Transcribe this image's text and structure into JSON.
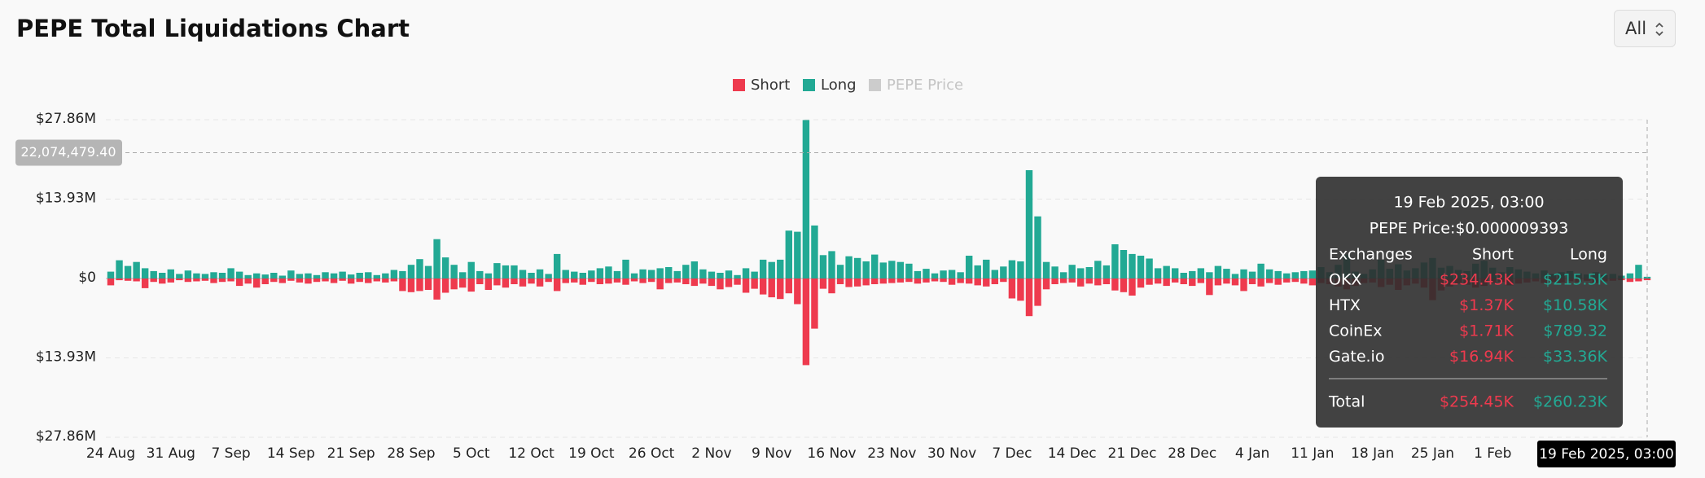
{
  "chart_data": {
    "type": "bar",
    "title": "PEPE Total Liquidations Chart",
    "range_selector": "All",
    "categories": [
      "24 Aug",
      null,
      null,
      null,
      null,
      null,
      null,
      "31 Aug",
      null,
      null,
      null,
      null,
      null,
      null,
      "7 Sep",
      null,
      null,
      null,
      null,
      null,
      null,
      "14 Sep",
      null,
      null,
      null,
      null,
      null,
      null,
      "21 Sep",
      null,
      null,
      null,
      null,
      null,
      null,
      "28 Sep",
      null,
      null,
      null,
      null,
      null,
      null,
      "5 Oct",
      null,
      null,
      null,
      null,
      null,
      null,
      "12 Oct",
      null,
      null,
      null,
      null,
      null,
      null,
      "19 Oct",
      null,
      null,
      null,
      null,
      null,
      null,
      "26 Oct",
      null,
      null,
      null,
      null,
      null,
      null,
      "2 Nov",
      null,
      null,
      null,
      null,
      null,
      null,
      "9 Nov",
      null,
      null,
      null,
      null,
      null,
      null,
      "16 Nov",
      null,
      null,
      null,
      null,
      null,
      null,
      "23 Nov",
      null,
      null,
      null,
      null,
      null,
      null,
      "30 Nov",
      null,
      null,
      null,
      null,
      null,
      null,
      "7 Dec",
      null,
      null,
      null,
      null,
      null,
      null,
      "14 Dec",
      null,
      null,
      null,
      null,
      null,
      null,
      "21 Dec",
      null,
      null,
      null,
      null,
      null,
      null,
      "28 Dec",
      null,
      null,
      null,
      null,
      null,
      null,
      "4 Jan",
      null,
      null,
      null,
      null,
      null,
      null,
      "11 Jan",
      null,
      null,
      null,
      null,
      null,
      null,
      "18 Jan",
      null,
      null,
      null,
      null,
      null,
      null,
      "25 Jan",
      null,
      null,
      null,
      null,
      null,
      null,
      "1 Feb",
      null,
      null,
      null,
      null,
      null,
      null,
      null,
      null,
      null,
      null,
      null,
      null,
      null,
      null,
      null,
      null,
      null,
      "19 Feb 2025, 03:00"
    ],
    "series": [
      {
        "name": "Short",
        "color": "#ee3a4e",
        "values": [
          -1.2,
          -0.3,
          -0.4,
          -0.5,
          -1.7,
          -0.6,
          -0.9,
          -0.7,
          -0.3,
          -0.6,
          -0.5,
          -0.4,
          -0.8,
          -0.6,
          -0.5,
          -1.3,
          -0.9,
          -1.6,
          -1.0,
          -0.6,
          -0.8,
          -0.4,
          -0.7,
          -0.9,
          -0.6,
          -0.5,
          -0.8,
          -0.4,
          -0.9,
          -0.6,
          -0.8,
          -0.5,
          -0.7,
          -0.5,
          -2.2,
          -2.4,
          -2.2,
          -2.0,
          -3.7,
          -2.5,
          -1.9,
          -1.6,
          -2.3,
          -1.0,
          -2.0,
          -1.2,
          -1.6,
          -1.0,
          -1.4,
          -0.9,
          -1.4,
          -0.6,
          -2.2,
          -0.8,
          -0.7,
          -1.1,
          -0.6,
          -1.0,
          -0.9,
          -0.7,
          -1.1,
          -0.5,
          -0.8,
          -0.6,
          -1.9,
          -0.8,
          -0.7,
          -1.0,
          -1.3,
          -0.9,
          -1.3,
          -1.9,
          -1.5,
          -1.1,
          -2.5,
          -1.8,
          -2.8,
          -3.3,
          -3.6,
          -2.6,
          -4.5,
          -15.2,
          -8.8,
          -1.8,
          -2.6,
          -1.0,
          -1.5,
          -1.4,
          -1.2,
          -1.0,
          -0.9,
          -0.8,
          -0.7,
          -0.6,
          -0.9,
          -0.7,
          -0.5,
          -0.6,
          -1.1,
          -0.8,
          -0.9,
          -1.2,
          -1.4,
          -1.0,
          -0.6,
          -3.5,
          -3.9,
          -6.6,
          -4.8,
          -1.9,
          -1.0,
          -0.8,
          -0.7,
          -1.4,
          -0.9,
          -1.2,
          -1.0,
          -2.1,
          -2.4,
          -3.0,
          -1.6,
          -1.1,
          -0.9,
          -1.3,
          -0.7,
          -1.0,
          -1.3,
          -0.8,
          -2.9,
          -1.2,
          -0.9,
          -1.2,
          -2.2,
          -1.0,
          -1.4,
          -0.8,
          -1.1,
          -0.7,
          -0.6,
          -0.9,
          -1.2,
          -0.8,
          -1.0,
          -1.4,
          -1.9,
          -1.3,
          -0.8,
          -0.7,
          -1.5,
          -1.1,
          -2.0,
          -1.2,
          -0.9,
          -1.6,
          -3.8,
          -2.1,
          -1.4,
          -0.9,
          -1.1,
          -1.6,
          -1.3,
          -0.8,
          -0.6,
          -1.2,
          -0.9,
          -0.7,
          -0.5,
          -0.8,
          -0.6,
          -0.7,
          -0.5,
          -0.6,
          -0.4,
          -0.8,
          -0.5,
          -0.4,
          -0.3,
          -0.6,
          -0.5,
          -0.3
        ]
      },
      {
        "name": "Long",
        "color": "#22a994",
        "values": [
          1.2,
          3.2,
          2.2,
          2.9,
          1.8,
          1.3,
          1.0,
          1.6,
          0.8,
          1.4,
          0.9,
          0.8,
          1.1,
          1.0,
          1.8,
          1.2,
          0.6,
          0.9,
          0.7,
          1.0,
          0.5,
          1.4,
          0.8,
          0.9,
          0.6,
          1.1,
          0.9,
          1.2,
          0.7,
          1.0,
          1.1,
          0.6,
          0.9,
          1.5,
          1.3,
          2.4,
          3.4,
          2.2,
          6.9,
          3.7,
          2.4,
          1.1,
          2.9,
          1.3,
          0.9,
          2.7,
          2.3,
          2.3,
          1.5,
          1.0,
          1.6,
          0.8,
          4.3,
          1.5,
          1.2,
          1.0,
          1.4,
          1.8,
          2.1,
          1.3,
          3.3,
          0.9,
          1.6,
          1.5,
          1.8,
          2.0,
          1.3,
          2.4,
          3.0,
          1.6,
          1.2,
          1.0,
          1.4,
          0.6,
          1.8,
          1.2,
          3.3,
          2.9,
          3.3,
          8.4,
          8.2,
          27.8,
          9.3,
          4.1,
          4.8,
          2.4,
          3.9,
          3.6,
          3.0,
          4.2,
          2.8,
          3.1,
          2.9,
          2.6,
          1.3,
          1.7,
          0.9,
          1.4,
          1.5,
          1.1,
          4.0,
          2.3,
          3.3,
          1.5,
          2.1,
          3.2,
          3.0,
          19.0,
          10.9,
          2.9,
          2.1,
          1.1,
          2.4,
          1.8,
          2.0,
          3.1,
          2.3,
          6.0,
          5.0,
          4.3,
          4.0,
          3.5,
          1.8,
          2.2,
          1.8,
          1.0,
          1.3,
          1.8,
          1.1,
          2.2,
          1.7,
          0.8,
          1.6,
          1.2,
          2.6,
          1.6,
          1.3,
          0.9,
          1.1,
          1.3,
          1.4,
          2.0,
          1.1,
          2.4,
          4.2,
          1.2,
          0.8,
          1.6,
          3.3,
          1.7,
          2.5,
          1.4,
          1.8,
          2.8,
          3.6,
          1.9,
          2.2,
          1.5,
          1.3,
          2.6,
          3.1,
          1.9,
          1.1,
          2.0,
          1.6,
          1.2,
          0.9,
          1.4,
          0.8,
          1.1,
          1.3,
          0.9,
          0.7,
          1.1,
          0.6,
          0.8,
          0.5,
          0.9,
          2.4,
          0.3
        ]
      }
    ],
    "hidden_series": {
      "name": "PEPE Price",
      "color": "#cccccc"
    },
    "ylim": [
      -27.86,
      27.86
    ],
    "yticks": [
      {
        "value": 27.86,
        "label": "$27.86M"
      },
      {
        "value": 13.93,
        "label": "$13.93M"
      },
      {
        "value": 0,
        "label": "$0"
      },
      {
        "value": -13.93,
        "label": "$13.93M"
      },
      {
        "value": -27.86,
        "label": "$27.86M"
      }
    ],
    "grid": true,
    "crosshair": {
      "value": 22.0744794,
      "label": "22,074,479.40"
    },
    "tooltip": {
      "title": "19 Feb 2025, 03:00",
      "price": "PEPE Price:$0.000009393",
      "header": [
        "Exchanges",
        "Short",
        "Long"
      ],
      "rows": [
        [
          "OKX",
          "$234.43K",
          "$215.5K"
        ],
        [
          "HTX",
          "$1.37K",
          "$10.58K"
        ],
        [
          "CoinEx",
          "$1.71K",
          "$789.32"
        ],
        [
          "Gate.io",
          "$16.94K",
          "$33.36K"
        ]
      ],
      "total": [
        "Total",
        "$254.45K",
        "$260.23K"
      ]
    }
  }
}
